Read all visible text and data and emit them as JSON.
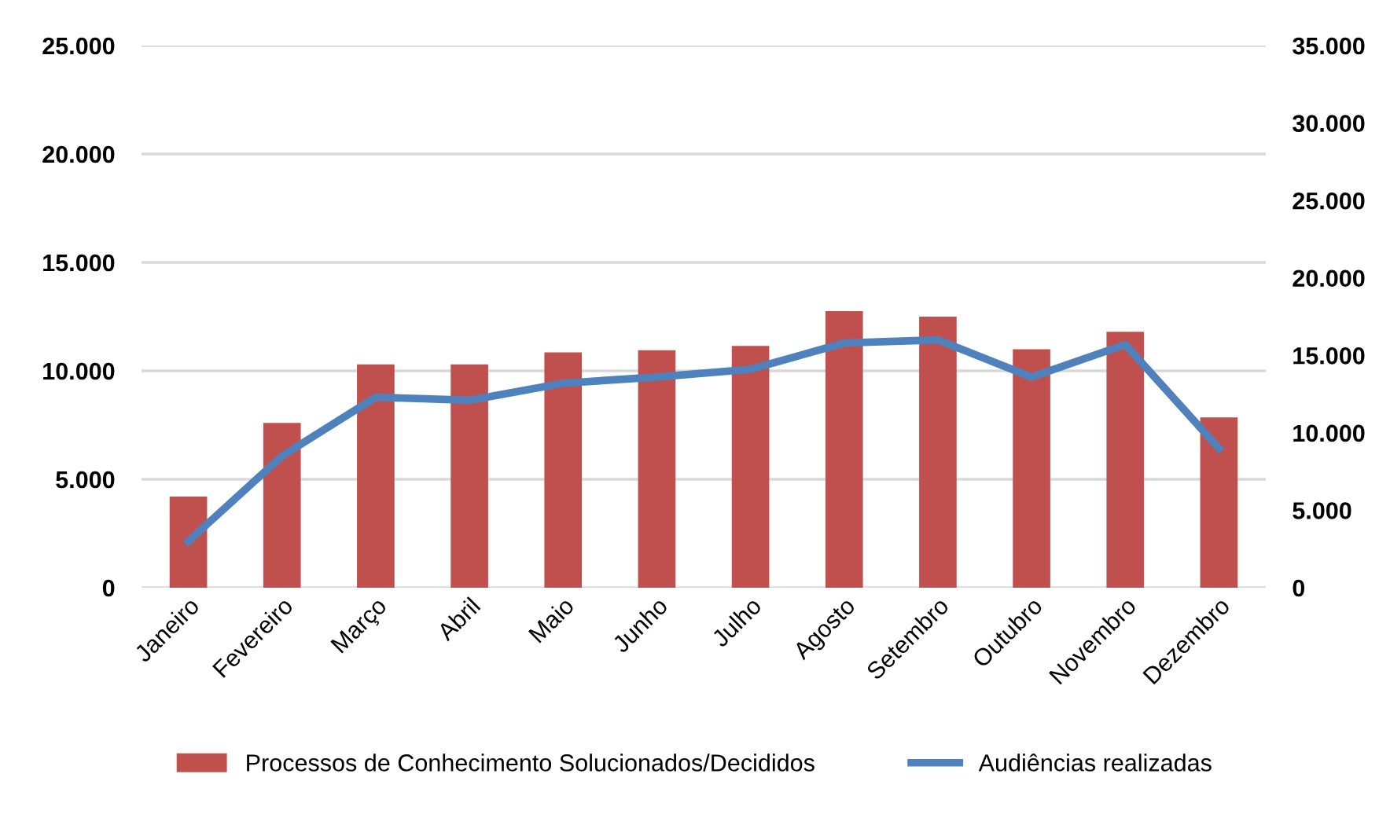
{
  "chart_data": {
    "type": "bar",
    "categories": [
      "Janeiro",
      "Fevereiro",
      "Março",
      "Abril",
      "Maio",
      "Junho",
      "Julho",
      "Agosto",
      "Setembro",
      "Outubro",
      "Novembro",
      "Dezembro"
    ],
    "series": [
      {
        "name": "Processos de Conhecimento Solucionados/Decididos",
        "color": "#c0504d",
        "values": [
          4200,
          7600,
          10300,
          10300,
          10850,
          10950,
          11150,
          12750,
          12500,
          11000,
          11800,
          7850
        ]
      },
      {
        "name": "Audiências realizadas",
        "type": "line",
        "axis": "y2",
        "color": "#4f81bd",
        "values": [
          3000,
          8500,
          12300,
          12100,
          13200,
          13600,
          14100,
          15800,
          16000,
          13600,
          15700,
          9000
        ]
      }
    ],
    "ylim": [
      0,
      25000
    ],
    "yticks": [
      {
        "value": 0,
        "label": "0"
      },
      {
        "value": 5000,
        "label": "5.000"
      },
      {
        "value": 10000,
        "label": "10.000"
      },
      {
        "value": 15000,
        "label": "15.000"
      },
      {
        "value": 20000,
        "label": "20.000"
      },
      {
        "value": 25000,
        "label": "25.000"
      }
    ],
    "y2lim": [
      0,
      35000
    ],
    "y2ticks": [
      {
        "value": 0,
        "label": "0"
      },
      {
        "value": 5000,
        "label": "5.000"
      },
      {
        "value": 10000,
        "label": "10.000"
      },
      {
        "value": 15000,
        "label": "15.000"
      },
      {
        "value": 20000,
        "label": "20.000"
      },
      {
        "value": 25000,
        "label": "25.000"
      },
      {
        "value": 30000,
        "label": "30.000"
      },
      {
        "value": 35000,
        "label": "35.000"
      }
    ],
    "grid": "y",
    "legend": "bottom",
    "marker": "none",
    "line_style": "solid"
  }
}
